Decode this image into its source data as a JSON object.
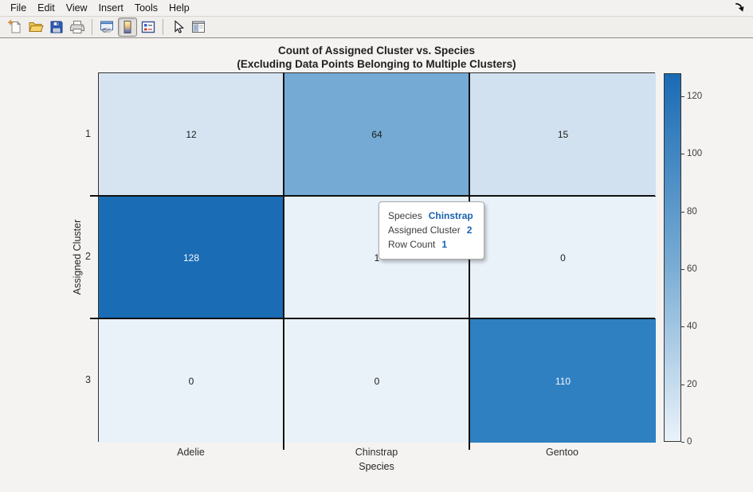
{
  "window": {
    "menu_items": [
      "File",
      "Edit",
      "View",
      "Insert",
      "Tools",
      "Help"
    ],
    "toolbar_groups": [
      [
        {
          "id": "new-figure",
          "icon": "new-document-icon"
        },
        {
          "id": "open-file",
          "icon": "open-folder-icon"
        },
        {
          "id": "save-figure",
          "icon": "save-floppy-icon"
        },
        {
          "id": "print-figure",
          "icon": "printer-icon"
        }
      ],
      [
        {
          "id": "link-plot",
          "icon": "link-window-icon"
        },
        {
          "id": "insert-colorbar",
          "icon": "colorbar-gradient-icon",
          "active": true
        },
        {
          "id": "insert-legend",
          "icon": "legend-box-icon"
        }
      ],
      [
        {
          "id": "edit-plot",
          "icon": "arrow-cursor-icon"
        },
        {
          "id": "show-plot-tools",
          "icon": "plot-browser-icon"
        }
      ]
    ]
  },
  "chart_data": {
    "type": "heatmap",
    "title": "Count of Assigned Cluster vs. Species",
    "subtitle": "(Excluding Data Points Belonging to Multiple Clusters)",
    "xlabel": "Species",
    "ylabel": "Assigned Cluster",
    "columns": [
      "Adelie",
      "Chinstrap",
      "Gentoo"
    ],
    "rows": [
      "1",
      "2",
      "3"
    ],
    "values": [
      [
        12,
        64,
        15
      ],
      [
        128,
        1,
        0
      ],
      [
        0,
        0,
        110
      ]
    ],
    "cell_colors": [
      [
        "#d6e4f1",
        "#74aad3",
        "#d1e1ef"
      ],
      [
        "#1a6cb5",
        "#e9f1f9",
        "#eaf2f9"
      ],
      [
        "#eaf2f9",
        "#eaf2f9",
        "#2e80c1"
      ]
    ],
    "cell_text_colors": [
      [
        "#1c1c1c",
        "#1c1c1c",
        "#1c1c1c"
      ],
      [
        "#f5f8fb",
        "#1c1c1c",
        "#1c1c1c"
      ],
      [
        "#1c1c1c",
        "#1c1c1c",
        "#f5f8fb"
      ]
    ],
    "color_axis": {
      "min": 0,
      "max": 128,
      "ticks": [
        0,
        20,
        40,
        60,
        80,
        100,
        120
      ]
    },
    "colormap": {
      "low": "#eaf2fa",
      "mid": "#74a9d2",
      "high": "#1a6bb4"
    },
    "highlighted_cell": {
      "row_index": 1,
      "col_index": 1
    },
    "legend_position": "colorbar-right",
    "grid": true
  },
  "tooltip": {
    "lines": [
      {
        "label": "Species",
        "value": "Chinstrap"
      },
      {
        "label": "Assigned Cluster",
        "value": "2"
      },
      {
        "label": "Row Count",
        "value": "1"
      }
    ],
    "value_color": "#1b62b2"
  }
}
